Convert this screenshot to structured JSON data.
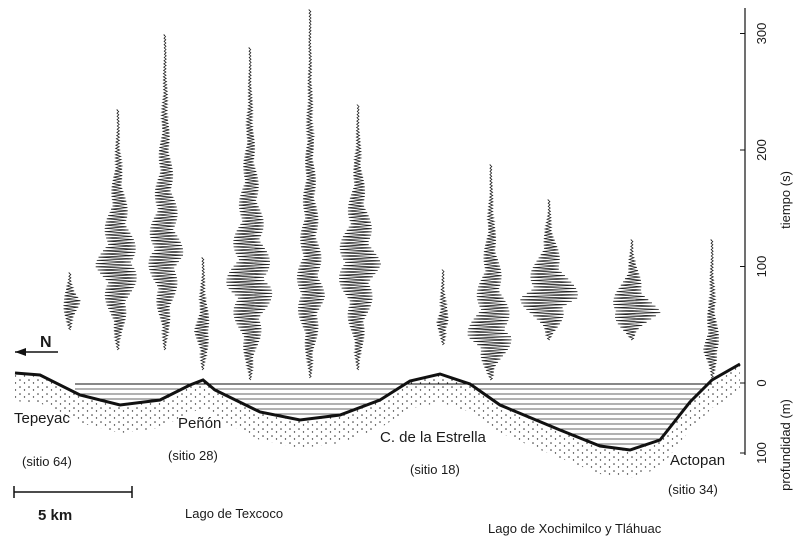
{
  "axis_time": {
    "label": "tiempo (s)",
    "ticks": [
      0,
      100,
      200,
      300
    ]
  },
  "axis_depth": {
    "label": "profundidad (m)",
    "ticks": [
      0,
      100
    ]
  },
  "north": "N",
  "scale_bar": "5 km",
  "sites": [
    {
      "name": "Tepeyac",
      "code": "(sitio 64)"
    },
    {
      "name": "Peñón",
      "code": "(sitio 28)"
    },
    {
      "name": "C. de la Estrella",
      "code": "(sitio 18)"
    },
    {
      "name": "Actopan",
      "code": "(sitio 34)"
    }
  ],
  "lakes": [
    "Lago de Texcoco",
    "Lago de Xochimilco y Tláhuac"
  ]
}
